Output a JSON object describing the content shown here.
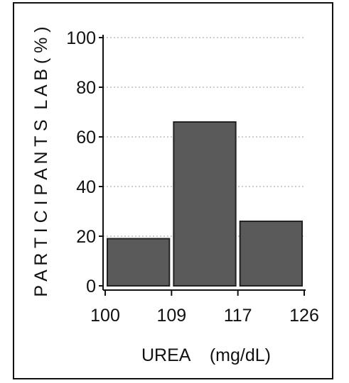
{
  "chart_data": {
    "type": "bar",
    "categories": [
      "100–109",
      "109–117",
      "117–126"
    ],
    "bin_edges": [
      100,
      109,
      117,
      126
    ],
    "values": [
      19,
      66,
      26
    ],
    "xlabel": "UREA    (mg/dL)",
    "ylabel": "P A R T I C I P A N T S  L A B ( % )",
    "ylim": [
      0,
      100
    ],
    "yticks": [
      "0",
      "20",
      "40",
      "60",
      "80",
      "100"
    ],
    "xticks": [
      "100",
      "109",
      "117",
      "126"
    ],
    "grid": true,
    "colors": {
      "bar": "#5a5a5a",
      "bar_edge": "#222222",
      "grid": "#9a9a9a",
      "axis": "#111111"
    }
  }
}
